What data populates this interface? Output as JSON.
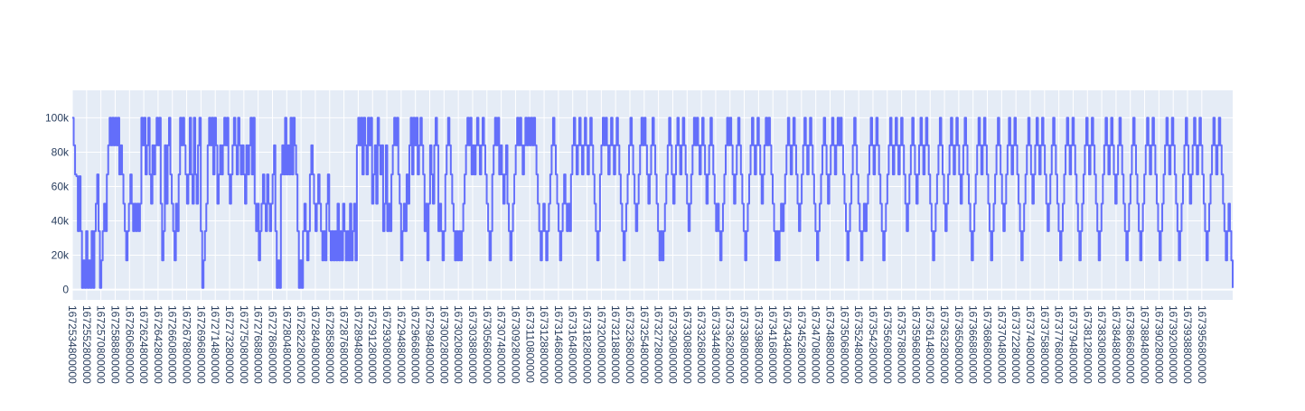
{
  "chart_data": {
    "type": "line",
    "line_shape": "step",
    "title": "",
    "xlabel": "",
    "ylabel": "",
    "x_start": 1672534800000,
    "x_end": 1673995680000,
    "ylim": [
      -6000,
      116000
    ],
    "y_ticks": [
      0,
      20000,
      40000,
      60000,
      80000,
      100000
    ],
    "y_tick_labels": [
      "0",
      "20k",
      "40k",
      "60k",
      "80k",
      "100k"
    ],
    "x_tick_labels": [
      "1672534800000",
      "1672552800000",
      "1672570800000",
      "1672588800000",
      "1672606800000",
      "1672624800000",
      "1672642800000",
      "1672660800000",
      "1672678800000",
      "1672696800000",
      "1672714800000",
      "1672732800000",
      "1672750800000",
      "1672768800000",
      "1672786800000",
      "1672804800000",
      "1672822800000",
      "1672840800000",
      "1672858800000",
      "1672876800000",
      "1672894800000",
      "1672912800000",
      "1672930800000",
      "1672948800000",
      "1672966800000",
      "1672984800000",
      "1673002800000",
      "1673020800000",
      "1673038800000",
      "1673056800000",
      "1673074800000",
      "1673092800000",
      "1673110800000",
      "1673128800000",
      "1673146800000",
      "1673164800000",
      "1673182800000",
      "1673200800000",
      "1673218800000",
      "1673236800000",
      "1673254800000",
      "1673272800000",
      "1673290800000",
      "1673308800000",
      "1673326800000",
      "1673344800000",
      "1673362800000",
      "1673380800000",
      "1673398800000",
      "1673416800000",
      "1673434800000",
      "1673452800000",
      "1673470800000",
      "1673488800000",
      "1673506800000",
      "1673524800000",
      "1673542800000",
      "1673560800000",
      "1673578800000",
      "1673596800000",
      "1673614800000",
      "1673632800000",
      "1673650800000",
      "1673668800000",
      "1673686800000",
      "1673704800000",
      "1673722800000",
      "1673740800000",
      "1673758800000",
      "1673776800000",
      "1673794800000",
      "1673812800000",
      "1673830800000",
      "1673848800000",
      "1673866800000",
      "1673884800000",
      "1673902800000",
      "1673920800000",
      "1673938800000",
      "1673956800000"
    ],
    "grid": true,
    "legend": false,
    "colors": {
      "line": "#636efa",
      "plot_bg": "#e5ecf6",
      "grid": "#ffffff",
      "tick_text": "#2a3f5f"
    },
    "series": [
      {
        "values": [
          100000,
          84000,
          67000,
          66000,
          34000,
          66000,
          34000,
          1000,
          17000,
          1000,
          34000,
          1000,
          17000,
          1000,
          34000,
          1000,
          34000,
          50000,
          67000,
          34000,
          1000,
          17000,
          34000,
          50000,
          34000,
          67000,
          84000,
          100000,
          84000,
          100000,
          84000,
          100000,
          84000,
          100000,
          67000,
          84000,
          67000,
          50000,
          34000,
          17000,
          34000,
          50000,
          67000,
          50000,
          34000,
          50000,
          34000,
          50000,
          34000,
          50000,
          100000,
          84000,
          100000,
          67000,
          84000,
          100000,
          67000,
          50000,
          84000,
          67000,
          84000,
          100000,
          84000,
          100000,
          50000,
          17000,
          34000,
          84000,
          50000,
          84000,
          100000,
          67000,
          50000,
          34000,
          17000,
          50000,
          34000,
          67000,
          100000,
          84000,
          100000,
          84000,
          67000,
          50000,
          67000,
          100000,
          67000,
          50000,
          100000,
          67000,
          50000,
          84000,
          100000,
          34000,
          1000,
          17000,
          34000,
          50000,
          84000,
          100000,
          84000,
          100000,
          67000,
          100000,
          84000,
          50000,
          67000,
          84000,
          67000,
          84000,
          100000,
          84000,
          100000,
          67000,
          50000,
          67000,
          84000,
          100000,
          84000,
          67000,
          100000,
          84000,
          67000,
          84000,
          67000,
          50000,
          84000,
          67000,
          84000,
          100000,
          67000,
          100000,
          50000,
          34000,
          50000,
          17000,
          34000,
          50000,
          67000,
          50000,
          34000,
          67000,
          50000,
          34000,
          50000,
          67000,
          84000,
          34000,
          1000,
          17000,
          1000,
          67000,
          84000,
          67000,
          100000,
          67000,
          84000,
          67000,
          100000,
          67000,
          100000,
          84000,
          67000,
          34000,
          1000,
          17000,
          1000,
          34000,
          50000,
          34000,
          17000,
          34000,
          67000,
          84000,
          67000,
          50000,
          34000,
          50000,
          67000,
          50000,
          34000,
          17000,
          34000,
          17000,
          50000,
          67000,
          34000,
          17000,
          34000,
          17000,
          34000,
          17000,
          50000,
          17000,
          34000,
          17000,
          50000,
          34000,
          17000,
          34000,
          17000,
          50000,
          17000,
          34000,
          50000,
          17000,
          84000,
          100000,
          84000,
          100000,
          67000,
          100000,
          84000,
          67000,
          100000,
          84000,
          100000,
          50000,
          67000,
          84000,
          50000,
          100000,
          84000,
          67000,
          84000,
          34000,
          50000,
          84000,
          34000,
          50000,
          34000,
          67000,
          84000,
          100000,
          84000,
          100000,
          67000,
          50000,
          17000,
          34000,
          50000,
          34000,
          67000,
          50000,
          84000,
          100000,
          67000,
          100000,
          84000,
          100000,
          67000,
          84000,
          100000,
          84000,
          67000,
          34000,
          50000,
          17000,
          50000,
          84000,
          67000,
          50000,
          84000,
          100000,
          84000,
          34000,
          50000,
          34000,
          17000,
          34000,
          67000,
          84000,
          100000,
          84000,
          67000,
          50000,
          34000,
          17000,
          34000,
          17000,
          34000,
          17000,
          34000,
          50000,
          67000,
          84000,
          100000,
          84000,
          100000,
          67000,
          84000,
          67000,
          84000,
          100000,
          84000,
          67000,
          84000,
          100000,
          84000,
          67000,
          50000,
          34000,
          17000,
          34000,
          67000,
          84000,
          100000,
          84000,
          100000,
          67000,
          84000,
          67000,
          50000,
          67000,
          84000,
          50000,
          34000,
          17000,
          34000,
          50000,
          67000,
          84000,
          100000,
          84000,
          100000,
          84000,
          67000,
          84000,
          100000,
          84000,
          100000,
          84000,
          100000,
          84000,
          100000,
          84000,
          67000,
          50000,
          34000,
          17000,
          34000,
          50000,
          34000,
          17000,
          34000,
          50000,
          67000,
          84000,
          100000,
          84000,
          67000,
          50000,
          34000,
          17000,
          34000,
          50000,
          67000,
          50000,
          34000,
          50000,
          34000,
          67000,
          84000,
          100000,
          84000,
          67000,
          84000,
          100000,
          84000,
          67000,
          84000,
          100000,
          84000,
          67000,
          84000,
          100000,
          84000,
          67000,
          50000,
          34000,
          17000,
          34000,
          67000,
          84000,
          100000,
          84000,
          100000,
          84000,
          67000,
          84000,
          100000,
          84000,
          67000,
          84000,
          100000,
          84000,
          67000,
          50000,
          34000,
          17000,
          34000,
          50000,
          67000,
          84000,
          100000,
          84000,
          67000,
          50000,
          34000,
          50000,
          67000,
          84000,
          100000,
          84000,
          100000,
          84000,
          67000,
          50000,
          67000,
          84000,
          100000,
          84000,
          67000,
          50000,
          34000,
          17000,
          34000,
          17000,
          34000,
          50000,
          67000,
          84000,
          100000,
          84000,
          67000,
          50000,
          67000,
          84000,
          100000,
          84000,
          67000,
          84000,
          100000,
          84000,
          67000,
          50000,
          34000,
          50000,
          67000,
          84000,
          100000,
          84000,
          100000,
          84000,
          67000,
          84000,
          100000,
          84000,
          67000,
          50000,
          67000,
          84000,
          100000,
          84000,
          67000,
          50000,
          34000,
          50000,
          34000,
          17000,
          34000,
          50000,
          67000,
          84000,
          100000,
          84000,
          100000,
          84000,
          67000,
          50000,
          67000,
          84000,
          100000,
          84000,
          67000,
          50000,
          34000,
          17000,
          34000,
          50000,
          67000,
          84000,
          100000,
          84000,
          67000,
          84000,
          100000,
          84000,
          67000,
          50000,
          67000,
          84000,
          100000,
          84000,
          100000,
          84000,
          67000,
          50000,
          34000,
          17000,
          34000,
          17000,
          34000,
          50000,
          34000,
          50000,
          67000,
          84000,
          100000,
          84000,
          67000,
          84000,
          100000,
          84000,
          67000,
          50000,
          34000,
          50000,
          67000,
          84000,
          100000,
          84000,
          67000,
          84000,
          100000,
          84000,
          67000,
          50000,
          34000,
          17000,
          34000,
          50000,
          67000,
          84000,
          100000,
          84000,
          67000,
          50000,
          67000,
          84000,
          100000,
          84000,
          67000,
          84000,
          100000,
          84000,
          100000,
          84000,
          67000,
          50000,
          34000,
          17000,
          34000,
          50000,
          67000,
          84000,
          100000,
          84000,
          67000,
          50000,
          34000,
          17000,
          34000,
          50000,
          34000,
          50000,
          67000,
          84000,
          100000,
          84000,
          67000,
          84000,
          100000,
          84000,
          67000,
          50000,
          34000,
          17000,
          34000,
          50000,
          67000,
          84000,
          100000,
          84000,
          67000,
          84000,
          100000,
          84000,
          67000,
          84000,
          100000,
          84000,
          67000,
          50000,
          34000,
          50000,
          67000,
          84000,
          100000,
          84000,
          67000,
          50000,
          67000,
          84000,
          100000,
          84000,
          67000,
          84000,
          100000,
          84000,
          67000,
          50000,
          34000,
          17000,
          34000,
          50000,
          67000,
          84000,
          100000,
          84000,
          67000,
          50000,
          34000,
          50000,
          67000,
          84000,
          100000,
          84000,
          67000,
          84000,
          100000,
          84000,
          67000,
          50000,
          67000,
          84000,
          100000,
          84000,
          67000,
          50000,
          34000,
          17000,
          34000,
          50000,
          67000,
          84000,
          100000,
          84000,
          67000,
          84000,
          100000,
          84000,
          67000,
          50000,
          34000,
          17000,
          34000,
          50000,
          67000,
          84000,
          100000,
          84000,
          67000,
          50000,
          34000,
          50000,
          67000,
          84000,
          100000,
          84000,
          67000,
          84000,
          100000,
          84000,
          67000,
          50000,
          34000,
          17000,
          34000,
          50000,
          67000,
          84000,
          100000,
          84000,
          67000,
          50000,
          67000,
          84000,
          100000,
          84000,
          67000,
          84000,
          100000,
          84000,
          67000,
          50000,
          34000,
          50000,
          67000,
          84000,
          100000,
          84000,
          67000,
          50000,
          34000,
          17000,
          34000,
          50000,
          67000,
          84000,
          100000,
          84000,
          67000,
          84000,
          100000,
          84000,
          67000,
          50000,
          34000,
          17000,
          34000,
          50000,
          67000,
          84000,
          100000,
          84000,
          67000,
          84000,
          100000,
          84000,
          67000,
          50000,
          34000,
          17000,
          34000,
          50000,
          67000,
          84000,
          100000,
          84000,
          67000,
          84000,
          100000,
          84000,
          67000,
          50000,
          67000,
          84000,
          100000,
          84000,
          67000,
          50000,
          34000,
          17000,
          34000,
          50000,
          67000,
          84000,
          100000,
          84000,
          67000,
          50000,
          34000,
          17000,
          34000,
          50000,
          67000,
          84000,
          100000,
          84000,
          67000,
          84000,
          100000,
          84000,
          67000,
          50000,
          34000,
          17000,
          34000,
          50000,
          67000,
          84000,
          100000,
          84000,
          67000,
          84000,
          100000,
          84000,
          67000,
          50000,
          34000,
          17000,
          34000,
          50000,
          67000,
          84000,
          100000,
          84000,
          67000,
          50000,
          67000,
          84000,
          100000,
          84000,
          67000,
          84000,
          100000,
          84000,
          67000,
          50000,
          34000,
          17000,
          34000,
          50000,
          67000,
          84000,
          100000,
          84000,
          67000,
          84000,
          100000,
          84000,
          67000,
          50000,
          34000,
          17000,
          34000,
          50000,
          34000,
          17000,
          1000
        ]
      }
    ]
  }
}
